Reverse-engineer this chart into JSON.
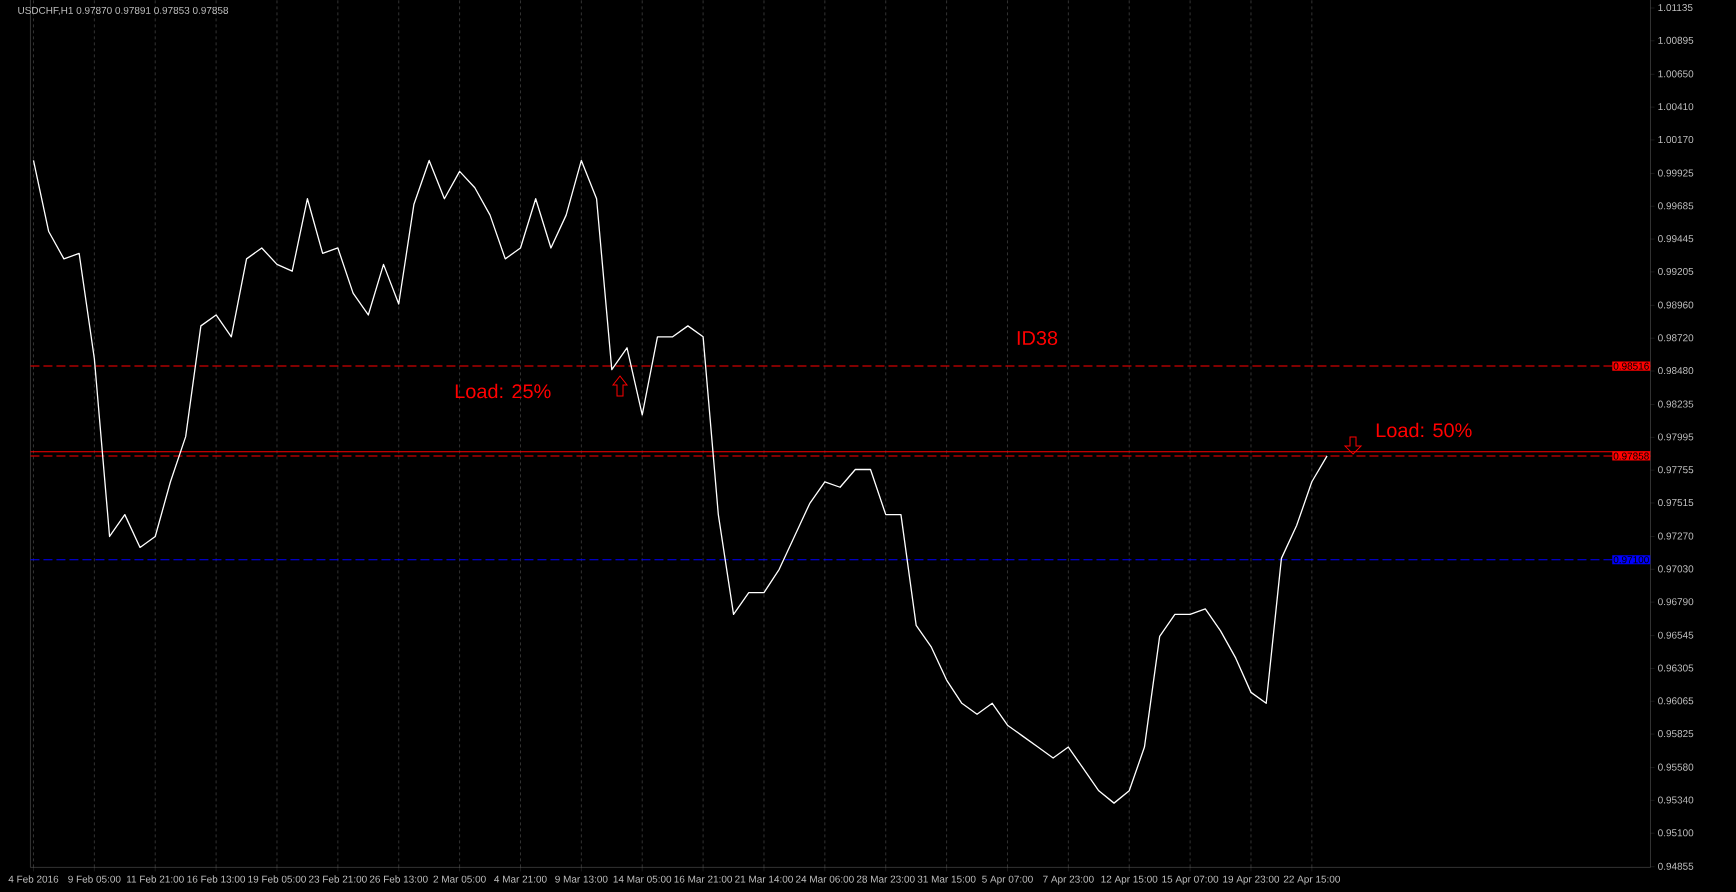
{
  "chart_data": {
    "type": "line",
    "title": "USDCHF,H1  0.97870 0.97891 0.97853 0.97858",
    "categories": [
      "4 Feb 2016",
      null,
      null,
      null,
      "9 Feb 05:00",
      null,
      null,
      null,
      "11 Feb 21:00",
      null,
      null,
      null,
      "16 Feb 13:00",
      null,
      null,
      null,
      "19 Feb 05:00",
      null,
      null,
      null,
      "23 Feb 21:00",
      null,
      null,
      null,
      "26 Feb 13:00",
      null,
      null,
      null,
      "2 Mar 05:00",
      null,
      null,
      null,
      "4 Mar 21:00",
      null,
      null,
      null,
      "9 Mar 13:00",
      null,
      null,
      null,
      "14 Mar 05:00",
      null,
      null,
      null,
      "16 Mar 21:00",
      null,
      null,
      null,
      "21 Mar 14:00",
      null,
      null,
      null,
      "24 Mar 06:00",
      null,
      null,
      null,
      "28 Mar 23:00",
      null,
      null,
      null,
      "31 Mar 15:00",
      null,
      null,
      null,
      "5 Apr 07:00",
      null,
      null,
      null,
      "7 Apr 23:00",
      null,
      null,
      null,
      "12 Apr 15:00",
      null,
      null,
      null,
      "15 Apr 07:00",
      null,
      null,
      null,
      "19 Apr 23:00",
      null,
      null,
      null,
      "22 Apr 15:00",
      null
    ],
    "series": [
      {
        "color": "#ffffff",
        "values": [
          1.0002,
          0.995,
          0.993,
          0.9934,
          0.9857,
          0.9727,
          0.9743,
          0.9719,
          0.9727,
          0.9767,
          0.98,
          0.9881,
          0.9889,
          0.9873,
          0.993,
          0.9938,
          0.9926,
          0.9921,
          0.9974,
          0.9934,
          0.9938,
          0.9905,
          0.9889,
          0.9926,
          0.9897,
          0.997,
          1.0002,
          0.9974,
          0.9994,
          0.9982,
          0.9962,
          0.993,
          0.9938,
          0.9974,
          0.9938,
          0.9962,
          1.0002,
          0.9974,
          0.9849,
          0.9865,
          0.9816,
          0.9873,
          0.9873,
          0.9881,
          0.9873,
          0.9743,
          0.967,
          0.9686,
          0.9686,
          0.9703,
          0.9727,
          0.9751,
          0.9767,
          0.9763,
          0.9776,
          0.9776,
          0.9743,
          0.9743,
          0.9662,
          0.9646,
          0.9622,
          0.9605,
          0.9597,
          0.9605,
          0.9589,
          0.9581,
          0.9573,
          0.9565,
          0.9573,
          0.9557,
          0.9541,
          0.9532,
          0.9541,
          0.9573,
          0.9654,
          0.967,
          0.967,
          0.9674,
          0.9658,
          0.9638,
          0.9613,
          0.9605,
          0.9711,
          0.9735,
          0.9767,
          0.9786
        ]
      }
    ],
    "ylim": [
      0.9485,
      1.0122
    ],
    "yticks": [
      1.01135,
      1.00895,
      {
        "value": 1.0065,
        "label": "1.00650"
      },
      {
        "value": 1.0041,
        "label": "1.00410"
      },
      {
        "value": 1.0017,
        "label": "1.00170"
      },
      0.99925,
      0.99685,
      0.99445,
      0.99205,
      {
        "value": 0.9896,
        "label": "0.98960"
      },
      {
        "value": 0.9872,
        "label": "0.98720"
      },
      {
        "value": 0.9848,
        "label": "0.98480"
      },
      0.98235,
      0.97995,
      0.97755,
      0.97515,
      {
        "value": 0.9727,
        "label": "0.97270"
      },
      {
        "value": 0.9703,
        "label": "0.97030"
      },
      {
        "value": 0.9679,
        "label": "0.96790"
      },
      0.96545,
      0.96305,
      0.96065,
      0.95825,
      {
        "value": 0.9558,
        "label": "0.95580"
      },
      {
        "value": 0.9534,
        "label": "0.95340"
      },
      {
        "value": 0.951,
        "label": "0.95100"
      },
      0.94855
    ],
    "ref_lines": [
      {
        "axis": "y",
        "value": 0.98516,
        "label": "0.98516",
        "color": "#ff0000",
        "line_style": "dashed"
      },
      {
        "axis": "y",
        "value": 0.9789,
        "label": null,
        "color": "#ff0000",
        "line_style": "solid"
      },
      {
        "axis": "y",
        "value": 0.97858,
        "label": "0.97858",
        "color": "#ff0000",
        "line_style": "dashed"
      },
      {
        "axis": "y",
        "value": 0.971,
        "label": "0.97100",
        "color": "#0000ff",
        "line_style": "dashed"
      }
    ],
    "annotations": [
      "ID38",
      "Load: 25%",
      "Load: 50%"
    ],
    "grid": "x"
  }
}
